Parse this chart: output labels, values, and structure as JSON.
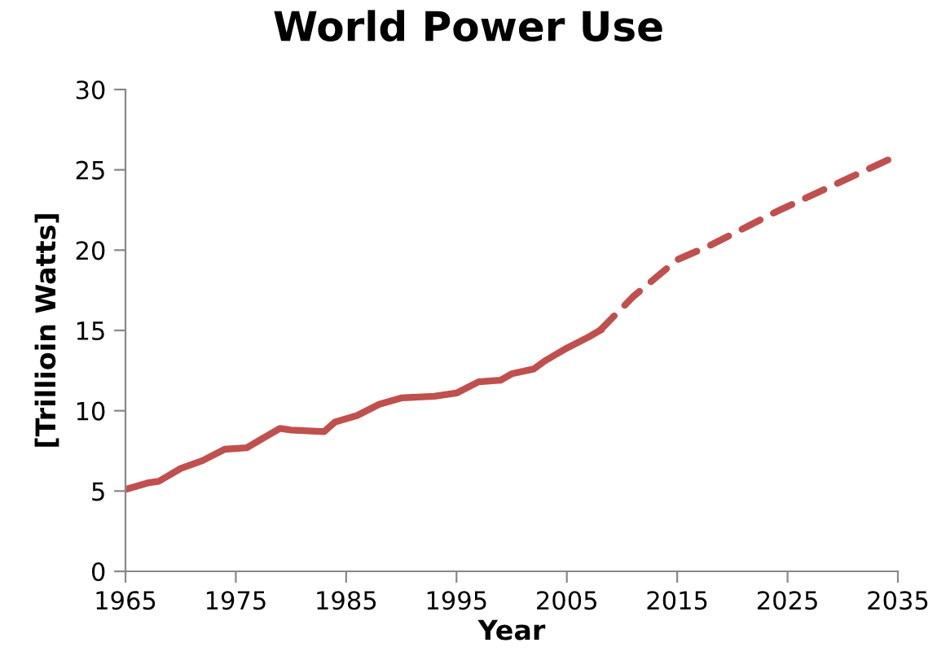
{
  "chart_data": {
    "type": "line",
    "title": "World Power Use",
    "xlabel": "Year",
    "ylabel": "[Trillioin Watts]",
    "xlim": [
      1965,
      2035
    ],
    "xticks": [
      1965,
      1975,
      1985,
      1995,
      2005,
      2015,
      2025,
      2035
    ],
    "ylim": [
      0,
      30
    ],
    "yticks": [
      0,
      5,
      10,
      15,
      20,
      25,
      30
    ],
    "grid": false,
    "legend": false,
    "series": [
      {
        "color": "#c0504d",
        "line_style": "solid",
        "x": [
          1965,
          1967,
          1968,
          1970,
          1972,
          1974,
          1976,
          1977,
          1979,
          1980,
          1983,
          1984,
          1986,
          1988,
          1990,
          1993,
          1995,
          1997,
          1999,
          2000,
          2002,
          2003,
          2005,
          2007,
          2008
        ],
        "values": [
          5.1,
          5.5,
          5.6,
          6.4,
          6.9,
          7.6,
          7.7,
          8.1,
          8.9,
          8.8,
          8.7,
          9.3,
          9.7,
          10.4,
          10.8,
          10.9,
          11.1,
          11.8,
          11.9,
          12.3,
          12.6,
          13.1,
          13.9,
          14.6,
          15.0
        ]
      },
      {
        "color": "#c0504d",
        "line_style": "dashed",
        "x": [
          2008,
          2011,
          2015,
          2018,
          2024,
          2035
        ],
        "values": [
          15.0,
          17.1,
          19.4,
          20.3,
          22.4,
          25.9
        ]
      }
    ]
  }
}
